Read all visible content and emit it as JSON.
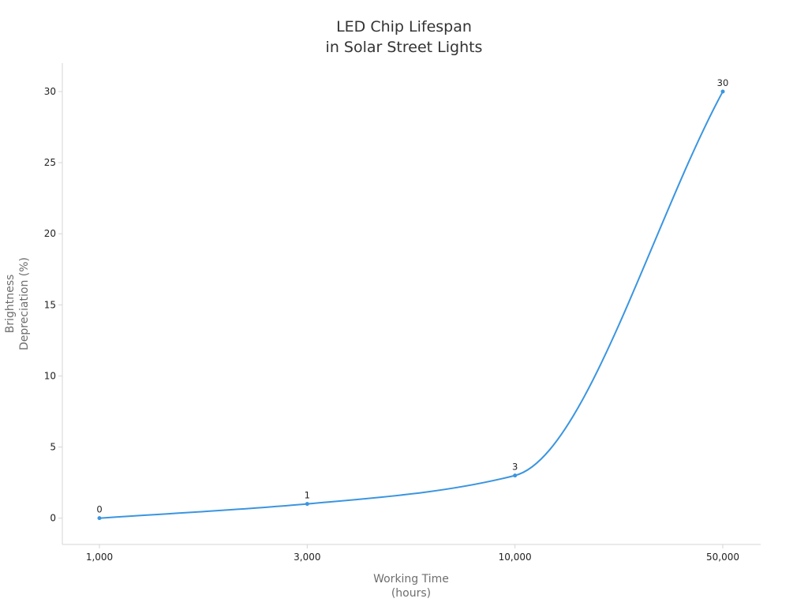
{
  "chart_data": {
    "type": "line",
    "title": [
      "LED Chip Lifespan",
      "in Solar Street Lights"
    ],
    "xlabel": [
      "Working Time",
      "(hours)"
    ],
    "ylabel": [
      "Brightness",
      "Depreciation (%)"
    ],
    "categories": [
      "1,000",
      "3,000",
      "10,000",
      "50,000"
    ],
    "series": [
      {
        "values": [
          0,
          1,
          3,
          30
        ],
        "color": "#3a95e0"
      }
    ],
    "data_labels": [
      "0",
      "1",
      "3",
      "30"
    ],
    "yticks": [
      0,
      5,
      10,
      15,
      20,
      25,
      30
    ],
    "ylim": [
      -1.85,
      32
    ],
    "smooth": true,
    "grid": false
  }
}
